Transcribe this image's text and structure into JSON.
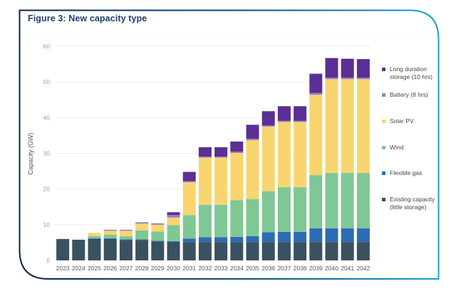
{
  "figure": {
    "title": "Figure 3: New capacity type"
  },
  "chart_data": {
    "type": "bar",
    "stacked": true,
    "title": "Figure 3: New capacity type",
    "xlabel": "",
    "ylabel": "Capacity (GW)",
    "ylim": [
      0,
      60
    ],
    "yticks": [
      0,
      10,
      20,
      30,
      40,
      50,
      60
    ],
    "grid": true,
    "legend_position": "right",
    "categories": [
      "2023",
      "2024",
      "2025",
      "2026",
      "2027",
      "2028",
      "2029",
      "2030",
      "2031",
      "2032",
      "2033",
      "2034",
      "2035",
      "2036",
      "2037",
      "2038",
      "2039",
      "2040",
      "2041",
      "2042"
    ],
    "series": [
      {
        "name": "Existing capacity (little storage)",
        "color": "#3a5160",
        "values": [
          6.0,
          5.8,
          6.0,
          6.0,
          5.7,
          5.7,
          5.3,
          5.2,
          5.1,
          5.1,
          5.1,
          5.1,
          5.1,
          5.1,
          5.1,
          5.1,
          5.1,
          5.1,
          5.1,
          5.1
        ]
      },
      {
        "name": "Flexible gas",
        "color": "#2d6cb5",
        "values": [
          0,
          0,
          0.2,
          0.2,
          0.2,
          0.2,
          0.2,
          0.2,
          1.0,
          1.4,
          1.4,
          1.5,
          1.7,
          2.8,
          2.9,
          2.9,
          3.9,
          3.9,
          3.9,
          3.9
        ]
      },
      {
        "name": "Wind",
        "color": "#7fc795",
        "values": [
          0,
          0,
          0.6,
          1.0,
          0.9,
          2.5,
          2.6,
          4.5,
          6.6,
          9.1,
          9.1,
          10.3,
          10.4,
          11.5,
          12.5,
          12.5,
          14.9,
          15.5,
          15.5,
          15.5
        ]
      },
      {
        "name": "Solar PV",
        "color": "#f8d56f",
        "values": [
          0,
          0,
          0.9,
          1.1,
          1.5,
          1.9,
          1.9,
          2.1,
          9.2,
          13.2,
          13.2,
          13.2,
          16.5,
          18.1,
          18.3,
          18.3,
          22.5,
          26.3,
          26.3,
          26.3
        ]
      },
      {
        "name": "Battery (8 hrs)",
        "color": "#9b7fc0",
        "values": [
          0,
          0,
          0,
          0.3,
          0.3,
          0.4,
          0.4,
          0.7,
          0.3,
          0.3,
          0.3,
          0.4,
          0.4,
          0.3,
          0.3,
          0.3,
          0.5,
          0.4,
          0.4,
          0.4
        ]
      },
      {
        "name": "Long duration storage (10 hrs)",
        "color": "#5b2f94",
        "values": [
          0,
          0,
          0,
          0,
          0,
          0,
          0,
          0.8,
          2.6,
          2.6,
          2.6,
          2.8,
          3.9,
          4.0,
          4.1,
          4.1,
          5.4,
          5.5,
          5.3,
          5.2
        ]
      }
    ]
  },
  "legend": [
    {
      "label": "Long duration storage (10 hrs)",
      "color": "#5b2f94"
    },
    {
      "label": "Battery (8 hrs)",
      "color": "#9b7fc0"
    },
    {
      "label": "Solar PV",
      "color": "#f8d56f"
    },
    {
      "label": "Wind",
      "color": "#7fc795"
    },
    {
      "label": "Flexible gas",
      "color": "#2d6cb5"
    },
    {
      "label": "Existing capacity (little storage)",
      "color": "#3a5160"
    }
  ],
  "colors": {
    "frame_start": "#0d2247",
    "frame_end": "#1aa0d1",
    "gridline": "#eeeeee"
  }
}
